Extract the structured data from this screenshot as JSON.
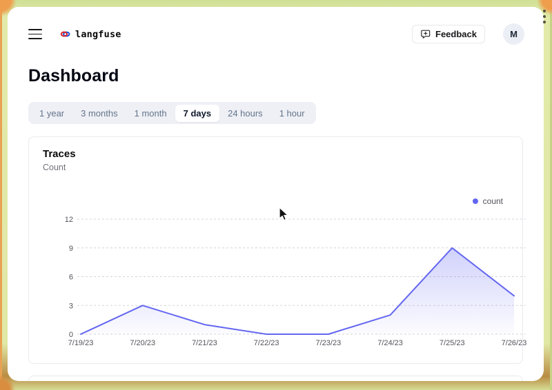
{
  "header": {
    "brand": "langfuse",
    "feedback_label": "Feedback",
    "avatar_initial": "M"
  },
  "page_title": "Dashboard",
  "time_tabs": {
    "items": [
      {
        "label": "1 year",
        "active": false
      },
      {
        "label": "3 months",
        "active": false
      },
      {
        "label": "1 month",
        "active": false
      },
      {
        "label": "7 days",
        "active": true
      },
      {
        "label": "24 hours",
        "active": false
      },
      {
        "label": "1 hour",
        "active": false
      }
    ]
  },
  "card": {
    "title": "Traces",
    "subtitle": "Count",
    "legend": {
      "label": "count",
      "color": "#6366f1"
    }
  },
  "chart_data": {
    "type": "area",
    "title": "Traces",
    "ylabel": "Count",
    "x": [
      "7/19/23",
      "7/20/23",
      "7/21/23",
      "7/22/23",
      "7/23/23",
      "7/24/23",
      "7/25/23",
      "7/26/23"
    ],
    "series": [
      {
        "name": "count",
        "values": [
          0,
          3,
          1,
          0,
          0,
          2,
          9,
          4
        ],
        "color": "#6366f1"
      }
    ],
    "ylim": [
      0,
      12
    ],
    "yticks": [
      0,
      3,
      6,
      9,
      12
    ],
    "grid": "horizontal-dashed",
    "legend_position": "top-right"
  },
  "icons": {
    "menu-icon": "hamburger (3 bars)",
    "brand-icon": "knot (red/blue)",
    "feedback-icon": "message-square-plus",
    "cursor-icon": "arrow-pointer",
    "frame-dots-icon": "vertical-ellipsis"
  },
  "colors": {
    "accent": "#6366f1",
    "grid_line": "#d4d4d8",
    "axis_text": "#52525b",
    "frame_green": "#e1e8a6",
    "frame_orange": "#ef9e4d"
  }
}
